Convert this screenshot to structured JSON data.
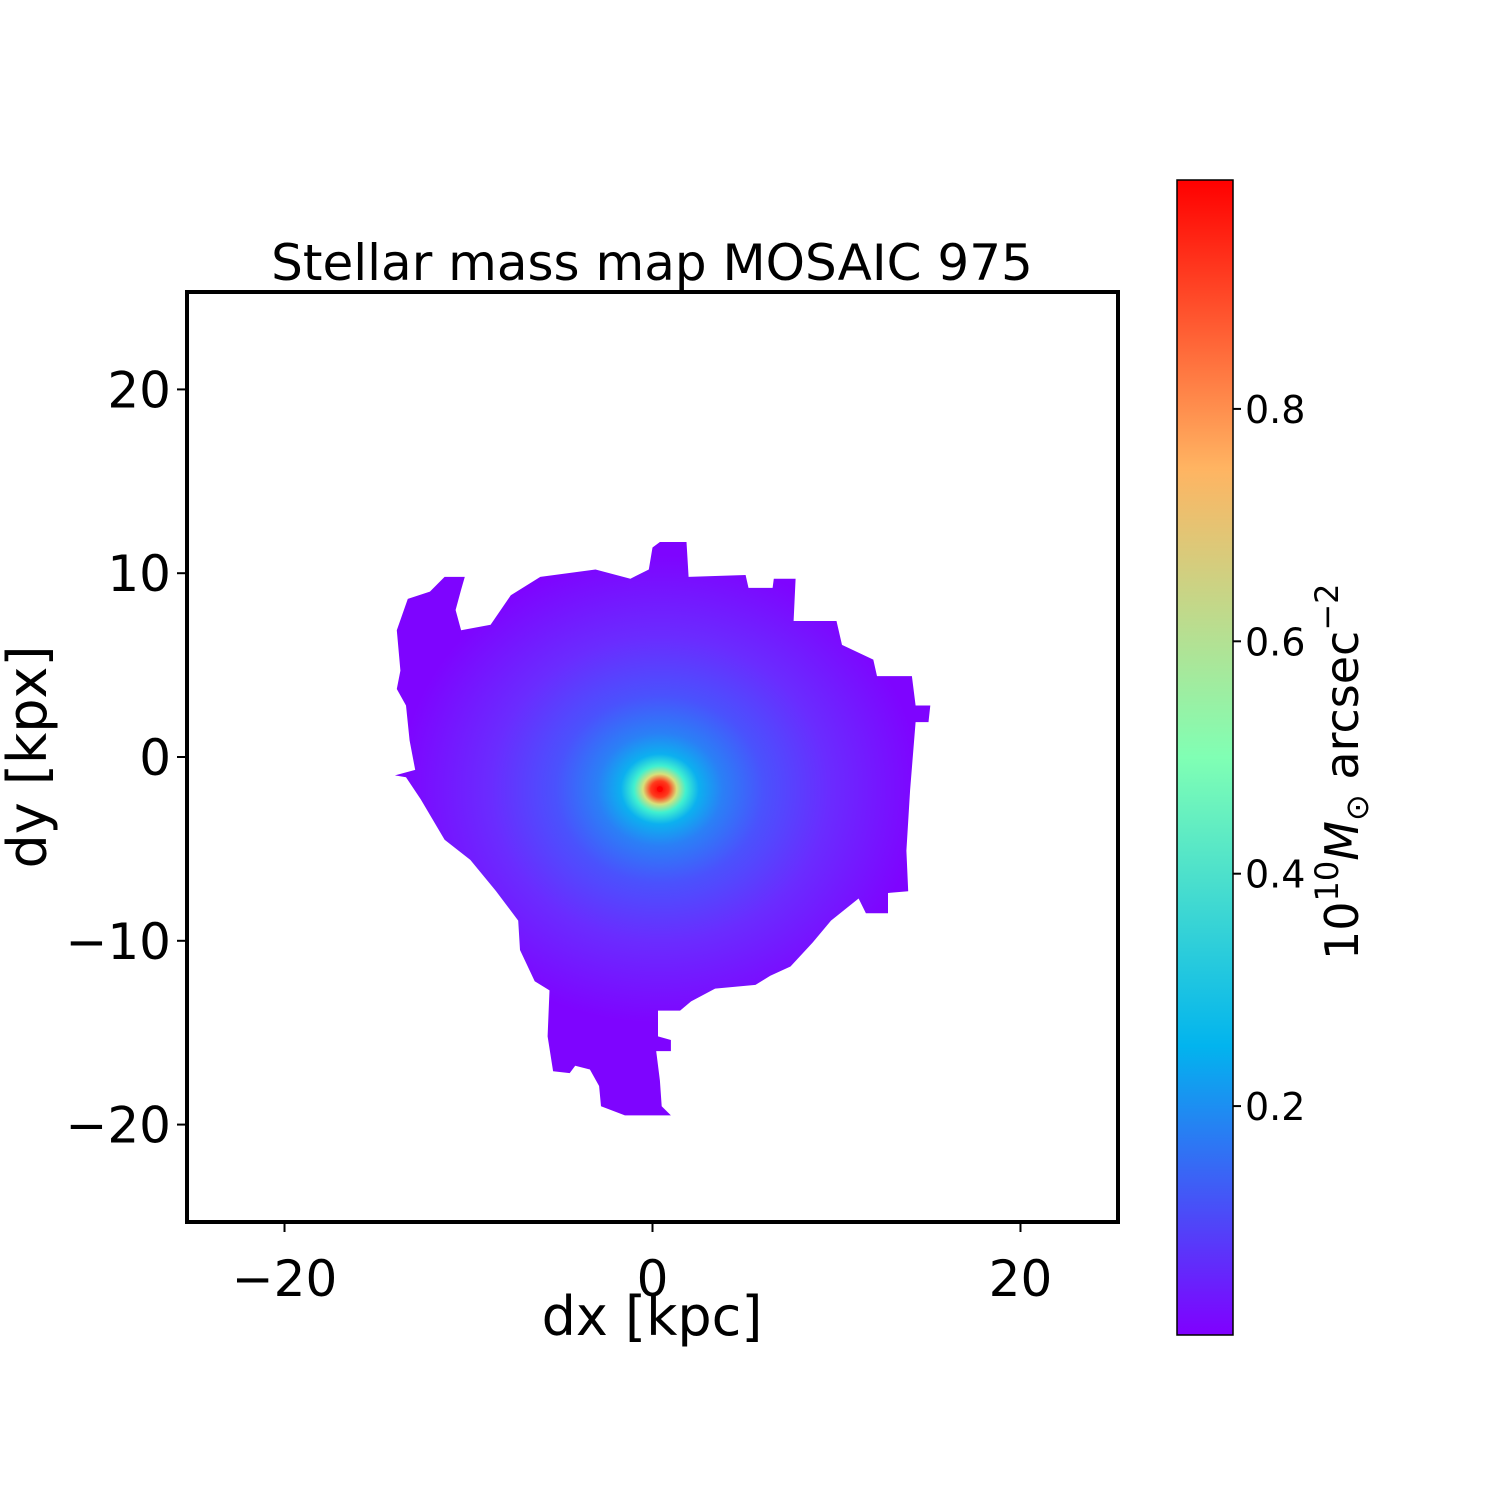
{
  "chart_data": {
    "type": "heatmap",
    "title": "Stellar mass map MOSAIC 975",
    "xlabel": "dx [kpc]",
    "ylabel": "dy [kpx]",
    "xlim": [
      -25.3,
      25.3
    ],
    "ylim": [
      -25.3,
      25.3
    ],
    "xticks": [
      -20,
      0,
      20
    ],
    "yticks": [
      -20,
      -10,
      0,
      10,
      20
    ],
    "xtick_labels": [
      "−20",
      "0",
      "20"
    ],
    "ytick_labels": [
      "−20",
      "−10",
      "0",
      "10",
      "20"
    ],
    "grid": false,
    "colormap": "rainbow",
    "colorbar": {
      "label_prefix": "10",
      "label_exp": "10",
      "label_unit": "M",
      "label_sub": "⊙",
      "label_rest": " arcsec",
      "label_rest_exp": "−2",
      "range": [
        0.003,
        0.997
      ],
      "ticks": [
        0.2,
        0.4,
        0.6,
        0.8
      ],
      "tick_labels": [
        "0.2",
        "0.4",
        "0.6",
        "0.8"
      ],
      "colors": [
        "#8000ff",
        "#02b4ee",
        "#80ffb4",
        "#ffb462",
        "#ff0000"
      ]
    },
    "peak": {
      "x": 0.4,
      "y": -1.75,
      "value": 0.99
    },
    "background_value": 0.01,
    "outline_kpc": [
      [
        0,
        11.4
      ],
      [
        0.4,
        11.7
      ],
      [
        1.85,
        11.7
      ],
      [
        1.96,
        9.8
      ],
      [
        5.06,
        9.9
      ],
      [
        5.22,
        9.2
      ],
      [
        6.53,
        9.2
      ],
      [
        6.59,
        9.7
      ],
      [
        7.78,
        9.7
      ],
      [
        7.67,
        7.4
      ],
      [
        10.0,
        7.4
      ],
      [
        10.3,
        6.1
      ],
      [
        12.0,
        5.3
      ],
      [
        12.2,
        4.4
      ],
      [
        14.1,
        4.4
      ],
      [
        14.3,
        2.8
      ],
      [
        15.1,
        2.8
      ],
      [
        15.0,
        1.9
      ],
      [
        14.3,
        1.9
      ],
      [
        14.0,
        -1.8
      ],
      [
        13.8,
        -5.1
      ],
      [
        13.9,
        -7.3
      ],
      [
        12.8,
        -7.4
      ],
      [
        12.8,
        -8.5
      ],
      [
        11.6,
        -8.5
      ],
      [
        11.2,
        -7.7
      ],
      [
        10.2,
        -8.5
      ],
      [
        9.7,
        -8.9
      ],
      [
        8.7,
        -10.1
      ],
      [
        7.5,
        -11.4
      ],
      [
        6.4,
        -11.9
      ],
      [
        5.6,
        -12.4
      ],
      [
        3.4,
        -12.6
      ],
      [
        2.1,
        -13.3
      ],
      [
        1.5,
        -13.8
      ],
      [
        0.3,
        -13.8
      ],
      [
        0.3,
        -15.2
      ],
      [
        1.0,
        -15.4
      ],
      [
        1.0,
        -16.0
      ],
      [
        0.2,
        -16.0
      ],
      [
        0.4,
        -17.6
      ],
      [
        0.5,
        -19.0
      ],
      [
        1.0,
        -19.5
      ],
      [
        -1.5,
        -19.5
      ],
      [
        -2.8,
        -19.0
      ],
      [
        -2.9,
        -17.9
      ],
      [
        -3.4,
        -17.0
      ],
      [
        -4.2,
        -16.8
      ],
      [
        -4.5,
        -17.2
      ],
      [
        -5.4,
        -17.1
      ],
      [
        -5.7,
        -15.2
      ],
      [
        -5.6,
        -12.7
      ],
      [
        -6.4,
        -12.2
      ],
      [
        -7.2,
        -10.5
      ],
      [
        -7.3,
        -8.9
      ],
      [
        -8.5,
        -7.3
      ],
      [
        -9.9,
        -5.6
      ],
      [
        -11.3,
        -4.5
      ],
      [
        -12.6,
        -2.3
      ],
      [
        -13.4,
        -1.1
      ],
      [
        -14.0,
        -1.0
      ],
      [
        -12.9,
        -0.7
      ],
      [
        -13.2,
        0.9
      ],
      [
        -13.4,
        2.8
      ],
      [
        -13.9,
        3.7
      ],
      [
        -13.7,
        4.7
      ],
      [
        -13.9,
        6.9
      ],
      [
        -13.3,
        8.6
      ],
      [
        -12.1,
        9.0
      ],
      [
        -11.3,
        9.8
      ],
      [
        -10.2,
        9.8
      ],
      [
        -10.4,
        9.1
      ],
      [
        -10.7,
        8.0
      ],
      [
        -10.4,
        6.9
      ],
      [
        -8.8,
        7.2
      ],
      [
        -7.7,
        8.8
      ],
      [
        -6.1,
        9.8
      ],
      [
        -3.1,
        10.2
      ],
      [
        -1.2,
        9.7
      ],
      [
        -0.2,
        10.2
      ]
    ]
  }
}
